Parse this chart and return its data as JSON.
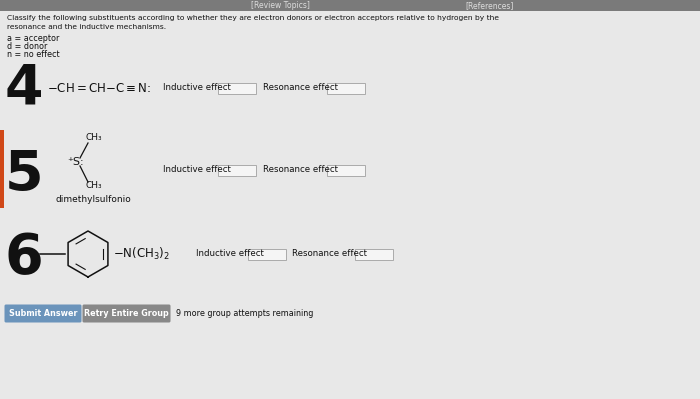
{
  "bg_color": "#e8e8e8",
  "header_bg": "#7a7a7a",
  "header_text_left": "[Review Topics]",
  "header_text_right": "[References]",
  "title_line1": "Classify the following substituents according to whether they are electron donors or electron acceptors relative to hydrogen by the",
  "title_line2": "resonance and the inductive mechanisms.",
  "legend_a": "a = acceptor",
  "legend_d": "d = donor",
  "legend_n": "n = no effect",
  "item4_num": "4",
  "item5_num": "5",
  "item5_label": "dimethylsulfonio",
  "item6_num": "6",
  "btn1_text": "Submit Answer",
  "btn1_color": "#6b94bb",
  "btn2_text": "Retry Entire Group",
  "btn2_color": "#888888",
  "remaining_text": "9 more group attempts remaining",
  "box_color": "#f5f5f5",
  "box_border": "#aaaaaa",
  "text_color": "#111111",
  "num_color": "#111111",
  "highlight5_color": "#d04818",
  "ind_label": "Inductive effect",
  "res_label": "Resonance effect"
}
